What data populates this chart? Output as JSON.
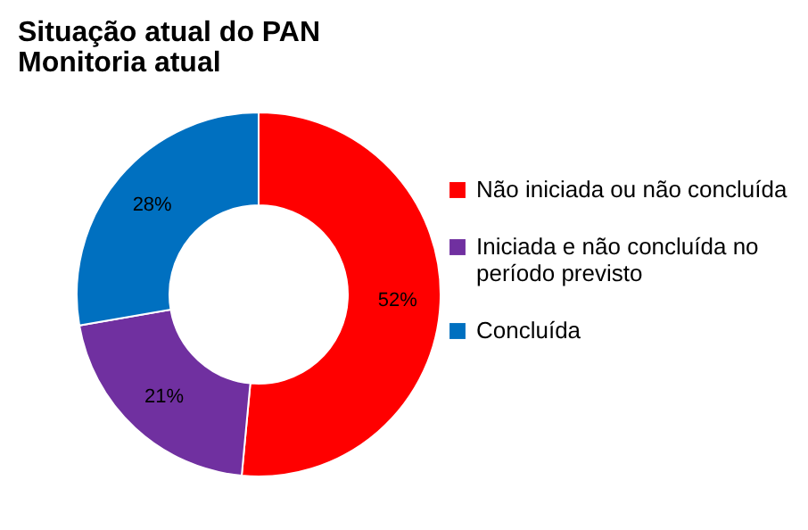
{
  "chart_data": {
    "type": "donut",
    "title": "Situação atual do PAN",
    "subtitle": "Monitoria atual",
    "categories": [
      "Não iniciada ou não concluída",
      "Iniciada e não concluída no período previsto",
      "Concluída"
    ],
    "values": [
      52,
      21,
      28
    ],
    "colors": [
      "#ff0000",
      "#7030a0",
      "#0070c0"
    ],
    "value_labels": [
      "52%",
      "21%",
      "28%"
    ],
    "legend": "right"
  }
}
